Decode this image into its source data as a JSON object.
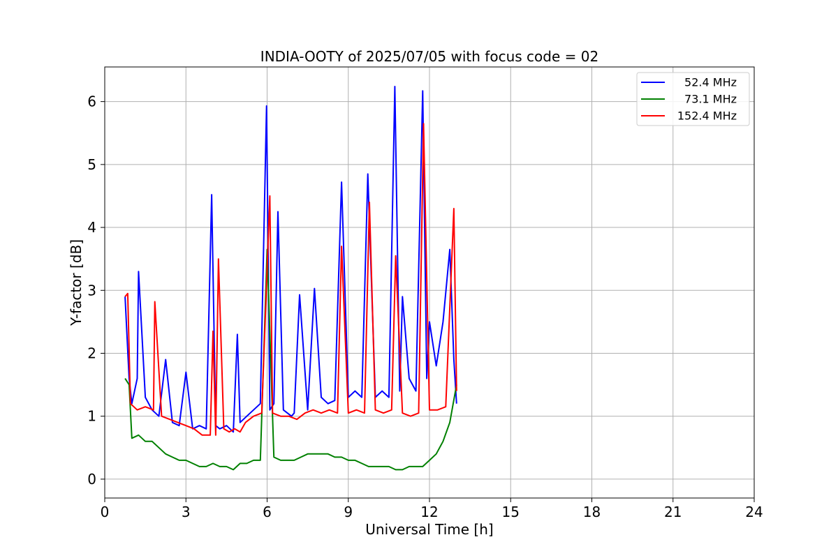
{
  "chart_data": {
    "type": "line",
    "title": "INDIA-OOTY of 2025/07/05 with focus code = 02",
    "xlabel": "Universal Time [h]",
    "ylabel": "Y-factor [dB]",
    "xlim": [
      0,
      24
    ],
    "ylim": [
      -0.3,
      6.55
    ],
    "xticks": [
      0,
      3,
      6,
      9,
      12,
      15,
      18,
      21,
      24
    ],
    "yticks": [
      0,
      1,
      2,
      3,
      4,
      5,
      6
    ],
    "grid": true,
    "legend_position": "top-right",
    "series": [
      {
        "name": "52.4 MHz",
        "color": "#0000ff",
        "x": [
          0.75,
          0.9,
          1.0,
          1.2,
          1.25,
          1.5,
          1.75,
          2.0,
          2.25,
          2.5,
          2.75,
          3.0,
          3.25,
          3.5,
          3.75,
          3.95,
          4.1,
          4.25,
          4.5,
          4.75,
          4.9,
          5.0,
          5.25,
          5.5,
          5.75,
          5.98,
          6.1,
          6.25,
          6.4,
          6.6,
          6.9,
          7.0,
          7.2,
          7.5,
          7.75,
          8.0,
          8.25,
          8.5,
          8.75,
          9.0,
          9.25,
          9.5,
          9.72,
          10.0,
          10.25,
          10.5,
          10.72,
          10.9,
          11.0,
          11.25,
          11.5,
          11.75,
          11.9,
          12.0,
          12.25,
          12.5,
          12.75,
          12.9,
          13.0
        ],
        "y": [
          2.9,
          1.6,
          1.2,
          1.6,
          3.3,
          1.3,
          1.1,
          1.0,
          1.9,
          0.9,
          0.85,
          1.7,
          0.8,
          0.85,
          0.8,
          4.52,
          0.85,
          0.8,
          0.85,
          0.75,
          2.3,
          0.9,
          1.0,
          1.1,
          1.2,
          5.93,
          1.1,
          1.2,
          4.25,
          1.1,
          1.0,
          1.05,
          2.93,
          1.1,
          3.03,
          1.3,
          1.2,
          1.25,
          4.72,
          1.3,
          1.4,
          1.3,
          4.85,
          1.3,
          1.4,
          1.3,
          6.24,
          1.4,
          2.9,
          1.6,
          1.4,
          6.17,
          1.6,
          2.5,
          1.8,
          2.5,
          3.65,
          1.9,
          1.2
        ]
      },
      {
        "name": "73.1 MHz",
        "color": "#008000",
        "x": [
          0.75,
          0.9,
          1.0,
          1.25,
          1.5,
          1.75,
          2.0,
          2.25,
          2.5,
          2.75,
          3.0,
          3.25,
          3.5,
          3.75,
          4.0,
          4.25,
          4.5,
          4.75,
          5.0,
          5.25,
          5.5,
          5.75,
          6.0,
          6.25,
          6.5,
          6.75,
          7.0,
          7.25,
          7.5,
          7.75,
          8.0,
          8.25,
          8.5,
          8.75,
          9.0,
          9.25,
          9.5,
          9.75,
          10.0,
          10.25,
          10.5,
          10.75,
          11.0,
          11.25,
          11.5,
          11.75,
          12.0,
          12.25,
          12.5,
          12.75,
          13.0
        ],
        "y": [
          1.6,
          1.5,
          0.65,
          0.7,
          0.6,
          0.6,
          0.5,
          0.4,
          0.35,
          0.3,
          0.3,
          0.25,
          0.2,
          0.2,
          0.25,
          0.2,
          0.2,
          0.15,
          0.25,
          0.25,
          0.3,
          0.3,
          3.65,
          0.35,
          0.3,
          0.3,
          0.3,
          0.35,
          0.4,
          0.4,
          0.4,
          0.4,
          0.35,
          0.35,
          0.3,
          0.3,
          0.25,
          0.2,
          0.2,
          0.2,
          0.2,
          0.15,
          0.15,
          0.2,
          0.2,
          0.2,
          0.3,
          0.4,
          0.6,
          0.9,
          1.5
        ]
      },
      {
        "name": "152.4 MHz",
        "color": "#ff0000",
        "x": [
          0.75,
          0.85,
          0.95,
          1.2,
          1.5,
          1.8,
          1.85,
          2.1,
          2.4,
          2.7,
          3.0,
          3.3,
          3.6,
          3.9,
          4.0,
          4.1,
          4.2,
          4.4,
          4.6,
          4.8,
          5.0,
          5.2,
          5.5,
          5.8,
          6.1,
          6.2,
          6.5,
          6.8,
          7.1,
          7.4,
          7.7,
          8.0,
          8.3,
          8.6,
          8.75,
          9.0,
          9.3,
          9.6,
          9.78,
          10.0,
          10.3,
          10.6,
          10.75,
          11.0,
          11.3,
          11.6,
          11.78,
          12.0,
          12.3,
          12.6,
          12.9,
          13.0
        ],
        "y": [
          2.9,
          2.95,
          1.2,
          1.1,
          1.15,
          1.1,
          2.82,
          1.0,
          0.95,
          0.9,
          0.85,
          0.8,
          0.7,
          0.7,
          2.35,
          0.7,
          3.5,
          0.8,
          0.75,
          0.8,
          0.75,
          0.9,
          1.0,
          1.05,
          4.5,
          1.05,
          1.0,
          1.0,
          0.95,
          1.05,
          1.1,
          1.05,
          1.1,
          1.05,
          3.7,
          1.05,
          1.1,
          1.05,
          4.4,
          1.1,
          1.05,
          1.1,
          3.55,
          1.05,
          1.0,
          1.05,
          5.65,
          1.1,
          1.1,
          1.15,
          4.3,
          1.4
        ]
      }
    ]
  }
}
